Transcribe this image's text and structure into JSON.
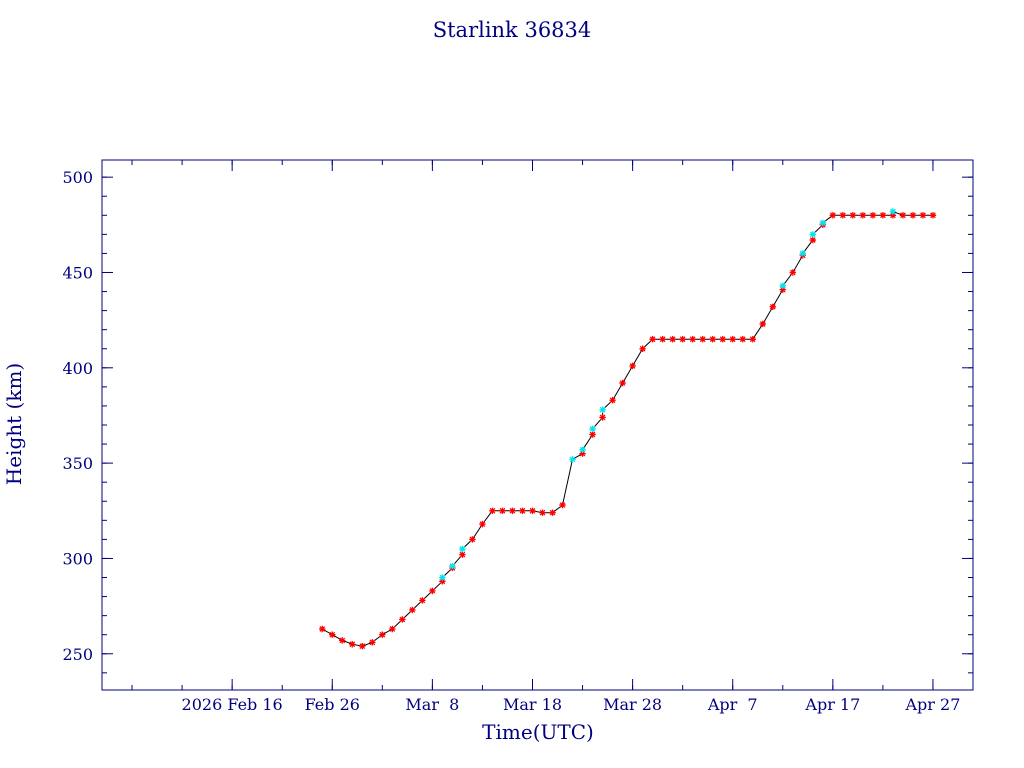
{
  "chart_data": {
    "type": "scatter",
    "title": "Starlink 36834",
    "xlabel": "Time(UTC)",
    "ylabel": "Height (km)",
    "x_unit": "date",
    "xlim": [
      "2026-02-03",
      "2026-05-01"
    ],
    "ylim": [
      231,
      509
    ],
    "grid": false,
    "x_ticks": [
      {
        "date": "2026-02-16",
        "label": "2026 Feb 16"
      },
      {
        "date": "2026-02-26",
        "label": "Feb 26"
      },
      {
        "date": "2026-03-08",
        "label": "Mar  8"
      },
      {
        "date": "2026-03-18",
        "label": "Mar 18"
      },
      {
        "date": "2026-03-28",
        "label": "Mar 28"
      },
      {
        "date": "2026-04-07",
        "label": "Apr  7"
      },
      {
        "date": "2026-04-17",
        "label": "Apr 17"
      },
      {
        "date": "2026-04-27",
        "label": "Apr 27"
      }
    ],
    "y_ticks": [
      250,
      300,
      350,
      400,
      450,
      500
    ],
    "colors": {
      "axis": "#00007f",
      "text": "#00007f",
      "line": "#000000",
      "series_red": "#ff0000",
      "series_cyan": "#00e5ee"
    },
    "series": [
      {
        "marker": "star",
        "color": "#ff0000",
        "points": [
          [
            "2026-02-25",
            263
          ],
          [
            "2026-02-26",
            260
          ],
          [
            "2026-02-27",
            257
          ],
          [
            "2026-02-28",
            255
          ],
          [
            "2026-03-01",
            254
          ],
          [
            "2026-03-02",
            256
          ],
          [
            "2026-03-03",
            260
          ],
          [
            "2026-03-04",
            263
          ],
          [
            "2026-03-05",
            268
          ],
          [
            "2026-03-06",
            273
          ],
          [
            "2026-03-07",
            278
          ],
          [
            "2026-03-08",
            283
          ],
          [
            "2026-03-09",
            288
          ],
          [
            "2026-03-10",
            295
          ],
          [
            "2026-03-11",
            302
          ],
          [
            "2026-03-12",
            310
          ],
          [
            "2026-03-13",
            318
          ],
          [
            "2026-03-14",
            325
          ],
          [
            "2026-03-15",
            325
          ],
          [
            "2026-03-16",
            325
          ],
          [
            "2026-03-17",
            325
          ],
          [
            "2026-03-18",
            325
          ],
          [
            "2026-03-19",
            324
          ],
          [
            "2026-03-20",
            324
          ],
          [
            "2026-03-21",
            328
          ],
          [
            "2026-03-23",
            355
          ],
          [
            "2026-03-24",
            365
          ],
          [
            "2026-03-25",
            374
          ],
          [
            "2026-03-26",
            383
          ],
          [
            "2026-03-27",
            392
          ],
          [
            "2026-03-28",
            401
          ],
          [
            "2026-03-29",
            410
          ],
          [
            "2026-03-30",
            415
          ],
          [
            "2026-03-31",
            415
          ],
          [
            "2026-04-01",
            415
          ],
          [
            "2026-04-02",
            415
          ],
          [
            "2026-04-03",
            415
          ],
          [
            "2026-04-04",
            415
          ],
          [
            "2026-04-05",
            415
          ],
          [
            "2026-04-06",
            415
          ],
          [
            "2026-04-07",
            415
          ],
          [
            "2026-04-08",
            415
          ],
          [
            "2026-04-09",
            415
          ],
          [
            "2026-04-10",
            423
          ],
          [
            "2026-04-11",
            432
          ],
          [
            "2026-04-12",
            441
          ],
          [
            "2026-04-13",
            450
          ],
          [
            "2026-04-14",
            459
          ],
          [
            "2026-04-15",
            467
          ],
          [
            "2026-04-16",
            475
          ],
          [
            "2026-04-17",
            480
          ],
          [
            "2026-04-18",
            480
          ],
          [
            "2026-04-19",
            480
          ],
          [
            "2026-04-20",
            480
          ],
          [
            "2026-04-21",
            480
          ],
          [
            "2026-04-22",
            480
          ],
          [
            "2026-04-23",
            480
          ],
          [
            "2026-04-24",
            480
          ],
          [
            "2026-04-25",
            480
          ],
          [
            "2026-04-26",
            480
          ],
          [
            "2026-04-27",
            480
          ]
        ]
      },
      {
        "marker": "star",
        "color": "#00e5ee",
        "points": [
          [
            "2026-03-09",
            290
          ],
          [
            "2026-03-10",
            296
          ],
          [
            "2026-03-11",
            305
          ],
          [
            "2026-03-22",
            352
          ],
          [
            "2026-03-23",
            357
          ],
          [
            "2026-03-24",
            368
          ],
          [
            "2026-03-25",
            378
          ],
          [
            "2026-04-12",
            443
          ],
          [
            "2026-04-14",
            460
          ],
          [
            "2026-04-15",
            470
          ],
          [
            "2026-04-16",
            476
          ],
          [
            "2026-04-23",
            482
          ]
        ]
      }
    ]
  }
}
